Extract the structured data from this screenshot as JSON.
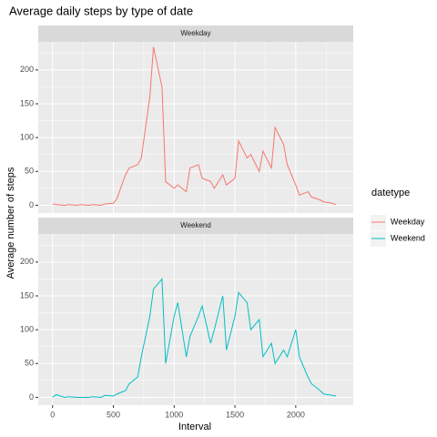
{
  "chart_data": {
    "type": "line",
    "facet": true,
    "title": "Average daily steps by type of date",
    "xlabel": "Interval",
    "ylabel": "Average number of steps",
    "legend_title": "datetype",
    "x": [
      0,
      30,
      100,
      130,
      200,
      230,
      300,
      330,
      400,
      430,
      500,
      530,
      600,
      630,
      700,
      730,
      800,
      830,
      900,
      930,
      1000,
      1030,
      1100,
      1130,
      1200,
      1230,
      1300,
      1330,
      1400,
      1430,
      1500,
      1530,
      1600,
      1630,
      1700,
      1730,
      1800,
      1830,
      1900,
      1930,
      2000,
      2030,
      2100,
      2130,
      2200,
      2230,
      2300,
      2330
    ],
    "series": [
      {
        "name": "Weekday",
        "color": "#F8766D",
        "values": [
          2,
          1,
          0,
          1,
          0,
          1,
          0,
          1,
          0,
          2,
          3,
          10,
          45,
          55,
          60,
          70,
          160,
          234,
          175,
          35,
          25,
          30,
          20,
          55,
          60,
          40,
          35,
          25,
          45,
          30,
          40,
          95,
          70,
          75,
          50,
          80,
          55,
          115,
          90,
          60,
          30,
          15,
          20,
          12,
          8,
          5,
          3,
          1
        ]
      },
      {
        "name": "Weekend",
        "color": "#00BFC4",
        "values": [
          0,
          4,
          0,
          1,
          0,
          0,
          0,
          1,
          0,
          3,
          2,
          5,
          10,
          20,
          30,
          60,
          120,
          160,
          175,
          50,
          120,
          140,
          60,
          90,
          120,
          135,
          80,
          100,
          150,
          70,
          120,
          155,
          140,
          100,
          115,
          60,
          80,
          50,
          70,
          60,
          100,
          60,
          30,
          20,
          10,
          5,
          3,
          2
        ]
      }
    ],
    "xlim": [
      -117.75,
      2472.75
    ],
    "xticks": [
      0,
      500,
      1000,
      1500,
      2000
    ],
    "ylim": [
      -11.5,
      241.5
    ],
    "yticks": [
      0,
      50,
      100,
      150,
      200
    ],
    "grid": true,
    "legend": "right"
  }
}
